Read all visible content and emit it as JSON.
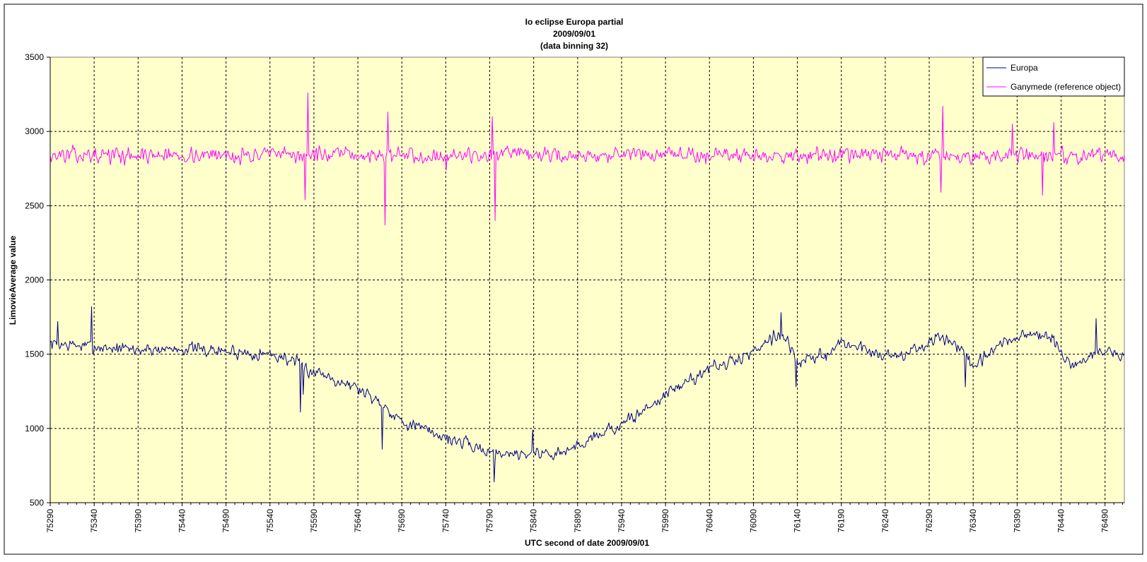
{
  "chart_data": {
    "type": "line",
    "title_lines": [
      "Io eclipse Europa partial",
      "2009/09/01",
      "(data binning 32)"
    ],
    "xlabel": "UTC second  of date 2009/09/01",
    "ylabel": "LimovieAverage value",
    "xlim": [
      75290,
      76512
    ],
    "ylim": [
      500,
      3500
    ],
    "yticks": [
      500,
      1000,
      1500,
      2000,
      2500,
      3000,
      3500
    ],
    "xticks": [
      75290,
      75340,
      75390,
      75440,
      75490,
      75540,
      75590,
      75640,
      75690,
      75740,
      75790,
      75840,
      75890,
      75940,
      75990,
      76040,
      76090,
      76140,
      76190,
      76240,
      76290,
      76340,
      76390,
      76440,
      76490
    ],
    "grid": true,
    "plot_background": "#ffffcc",
    "legend_position": "top-right",
    "x_step": 1.07,
    "series": [
      {
        "name": "Europa",
        "color": "#000080",
        "anchors": [
          [
            75290,
            1570
          ],
          [
            75340,
            1550
          ],
          [
            75390,
            1530
          ],
          [
            75440,
            1540
          ],
          [
            75490,
            1520
          ],
          [
            75540,
            1500
          ],
          [
            75560,
            1470
          ],
          [
            75580,
            1400
          ],
          [
            75600,
            1370
          ],
          [
            75640,
            1270
          ],
          [
            75665,
            1180
          ],
          [
            75690,
            1050
          ],
          [
            75740,
            940
          ],
          [
            75790,
            840
          ],
          [
            75820,
            830
          ],
          [
            75840,
            835
          ],
          [
            75870,
            830
          ],
          [
            75890,
            880
          ],
          [
            75910,
            960
          ],
          [
            75940,
            1020
          ],
          [
            75970,
            1140
          ],
          [
            75990,
            1230
          ],
          [
            76020,
            1330
          ],
          [
            76040,
            1410
          ],
          [
            76060,
            1430
          ],
          [
            76090,
            1520
          ],
          [
            76110,
            1620
          ],
          [
            76125,
            1630
          ],
          [
            76140,
            1440
          ],
          [
            76170,
            1490
          ],
          [
            76190,
            1580
          ],
          [
            76220,
            1530
          ],
          [
            76240,
            1490
          ],
          [
            76270,
            1510
          ],
          [
            76300,
            1610
          ],
          [
            76320,
            1580
          ],
          [
            76340,
            1400
          ],
          [
            76370,
            1560
          ],
          [
            76400,
            1640
          ],
          [
            76430,
            1600
          ],
          [
            76450,
            1420
          ],
          [
            76490,
            1530
          ],
          [
            76512,
            1480
          ]
        ],
        "noise": 55,
        "seed": 7,
        "spikes": [
          [
            75299,
            1720
          ],
          [
            75337,
            1820
          ],
          [
            75575,
            1110
          ],
          [
            75578,
            1230
          ],
          [
            75668,
            860
          ],
          [
            75795,
            640
          ],
          [
            75839,
            990
          ],
          [
            76121,
            1780
          ],
          [
            76139,
            1280
          ],
          [
            76331,
            1280
          ],
          [
            76480,
            1740
          ]
        ]
      },
      {
        "name": "Ganymede (reference object)",
        "color": "#ff00ff",
        "anchors": [
          [
            75290,
            2840
          ],
          [
            76512,
            2840
          ]
        ],
        "noise": 65,
        "seed": 13,
        "spikes": [
          [
            75583,
            3260
          ],
          [
            75580,
            2540
          ],
          [
            75671,
            2370
          ],
          [
            75674,
            3130
          ],
          [
            75740,
            2740
          ],
          [
            75796,
            2400
          ],
          [
            75793,
            3100
          ],
          [
            76305,
            3170
          ],
          [
            76303,
            2590
          ],
          [
            76385,
            3050
          ],
          [
            76432,
            3060
          ],
          [
            76419,
            2570
          ]
        ]
      }
    ]
  }
}
